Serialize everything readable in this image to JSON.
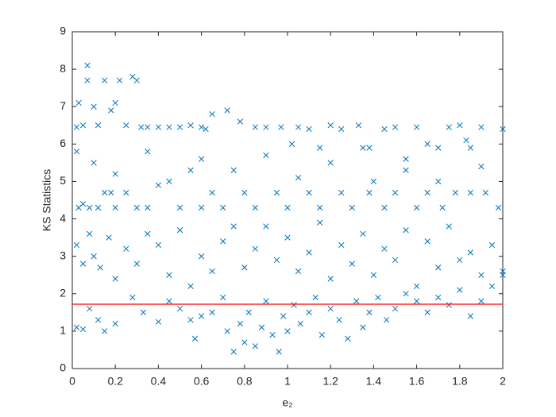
{
  "chart_data": {
    "type": "scatter",
    "xlabel": "e₂",
    "ylabel": "KS Statistics",
    "xlim": [
      0,
      2
    ],
    "ylim": [
      0,
      9
    ],
    "xticks": [
      0,
      0.2,
      0.4,
      0.6,
      0.8,
      1,
      1.2,
      1.4,
      1.6,
      1.8,
      2
    ],
    "yticks": [
      0,
      1,
      2,
      3,
      4,
      5,
      6,
      7,
      8,
      9
    ],
    "marker": "x",
    "hline": {
      "value": 1.72,
      "color": "#ff0000"
    },
    "series": [
      {
        "color": "#0072bd",
        "x": [
          0.02,
          0.03,
          0.05,
          0.07,
          0.07,
          0.1,
          0.12,
          0.15,
          0.18,
          0.2,
          0.22,
          0.28,
          0.3,
          0.25,
          0.32,
          0.35,
          0.4,
          0.45,
          0.5,
          0.55,
          0.6,
          0.62,
          0.65,
          0.72,
          0.78,
          0.85,
          0.9,
          0.97,
          1.02,
          1.05,
          1.1,
          1.15,
          1.2,
          1.25,
          1.33,
          1.35,
          1.38,
          1.45,
          1.5,
          1.55,
          1.6,
          1.65,
          1.7,
          1.75,
          1.8,
          1.83,
          1.85,
          1.9,
          2.0,
          0.03,
          0.05,
          0.08,
          0.12,
          0.15,
          0.18,
          0.2,
          0.25,
          0.3,
          0.35,
          0.4,
          0.5,
          0.55,
          0.6,
          0.65,
          0.7,
          0.8,
          0.85,
          0.95,
          1.0,
          1.1,
          1.15,
          1.25,
          1.3,
          1.38,
          1.45,
          1.5,
          1.6,
          1.65,
          1.72,
          1.78,
          1.85,
          1.92,
          1.98,
          0.02,
          0.05,
          0.08,
          0.1,
          0.13,
          0.17,
          0.2,
          0.25,
          0.3,
          0.35,
          0.4,
          0.45,
          0.5,
          0.55,
          0.6,
          0.65,
          0.7,
          0.75,
          0.8,
          0.85,
          0.9,
          0.95,
          1.0,
          1.05,
          1.1,
          1.15,
          1.2,
          1.25,
          1.3,
          1.35,
          1.4,
          1.45,
          1.5,
          1.55,
          1.6,
          1.65,
          1.7,
          1.75,
          1.8,
          1.85,
          1.9,
          1.95,
          2.0,
          0.02,
          0.05,
          0.08,
          0.12,
          0.15,
          0.2,
          0.28,
          0.33,
          0.4,
          0.45,
          0.5,
          0.55,
          0.57,
          0.6,
          0.65,
          0.7,
          0.72,
          0.75,
          0.78,
          0.8,
          0.82,
          0.85,
          0.88,
          0.9,
          0.93,
          0.96,
          0.98,
          1.0,
          1.03,
          1.06,
          1.1,
          1.13,
          1.16,
          1.2,
          1.24,
          1.28,
          1.32,
          1.35,
          1.38,
          1.42,
          1.46,
          1.5,
          1.55,
          1.6,
          1.65,
          1.7,
          1.75,
          1.8,
          1.85,
          1.9,
          1.95,
          2.0,
          0.02,
          0.1,
          0.2,
          0.35,
          0.45,
          0.6,
          0.75,
          0.9,
          1.05,
          1.2,
          1.4,
          1.55,
          1.7,
          1.9
        ],
        "values": [
          6.45,
          7.1,
          6.5,
          8.1,
          7.7,
          7.0,
          6.5,
          7.7,
          6.9,
          7.1,
          7.7,
          7.8,
          7.7,
          6.5,
          6.45,
          6.45,
          6.45,
          6.45,
          6.45,
          6.5,
          6.45,
          6.4,
          6.8,
          6.9,
          6.6,
          6.45,
          6.45,
          6.45,
          6.0,
          6.45,
          6.4,
          5.9,
          6.5,
          6.4,
          6.5,
          5.9,
          5.9,
          6.4,
          6.45,
          5.6,
          6.45,
          6.0,
          5.9,
          6.45,
          6.5,
          6.1,
          5.9,
          6.45,
          6.4,
          4.3,
          4.4,
          4.3,
          4.3,
          4.7,
          4.7,
          4.3,
          4.7,
          4.3,
          4.3,
          4.9,
          4.3,
          5.3,
          4.3,
          4.7,
          4.3,
          4.7,
          4.3,
          4.7,
          4.3,
          4.7,
          4.3,
          4.7,
          4.3,
          4.7,
          4.3,
          4.7,
          4.3,
          4.7,
          4.3,
          4.7,
          4.7,
          4.7,
          4.3,
          3.3,
          2.8,
          3.6,
          3.0,
          2.7,
          3.5,
          2.4,
          3.2,
          2.8,
          3.6,
          3.3,
          2.5,
          3.7,
          2.2,
          3.0,
          2.6,
          3.4,
          3.8,
          2.7,
          3.2,
          3.8,
          2.9,
          3.5,
          2.6,
          3.1,
          3.9,
          2.4,
          3.3,
          2.8,
          3.6,
          2.5,
          3.2,
          2.9,
          3.7,
          2.2,
          3.4,
          2.7,
          3.8,
          2.9,
          3.1,
          2.5,
          3.3,
          2.6,
          1.1,
          1.05,
          1.6,
          1.3,
          1.0,
          1.2,
          1.9,
          1.5,
          1.25,
          1.8,
          1.6,
          1.3,
          0.8,
          1.4,
          1.5,
          1.9,
          1.0,
          0.45,
          1.2,
          0.7,
          1.5,
          0.6,
          1.1,
          1.8,
          0.9,
          0.45,
          1.4,
          1.0,
          1.7,
          1.2,
          1.5,
          1.9,
          0.9,
          1.6,
          1.3,
          0.8,
          1.8,
          1.1,
          1.5,
          1.9,
          1.3,
          1.6,
          2.0,
          1.8,
          1.5,
          1.9,
          1.7,
          2.1,
          1.4,
          1.8,
          2.2,
          2.5,
          5.8,
          5.5,
          5.2,
          5.8,
          5.0,
          5.6,
          5.3,
          5.7,
          5.1,
          5.5,
          5.0,
          5.3,
          5.0,
          5.4
        ]
      }
    ]
  }
}
